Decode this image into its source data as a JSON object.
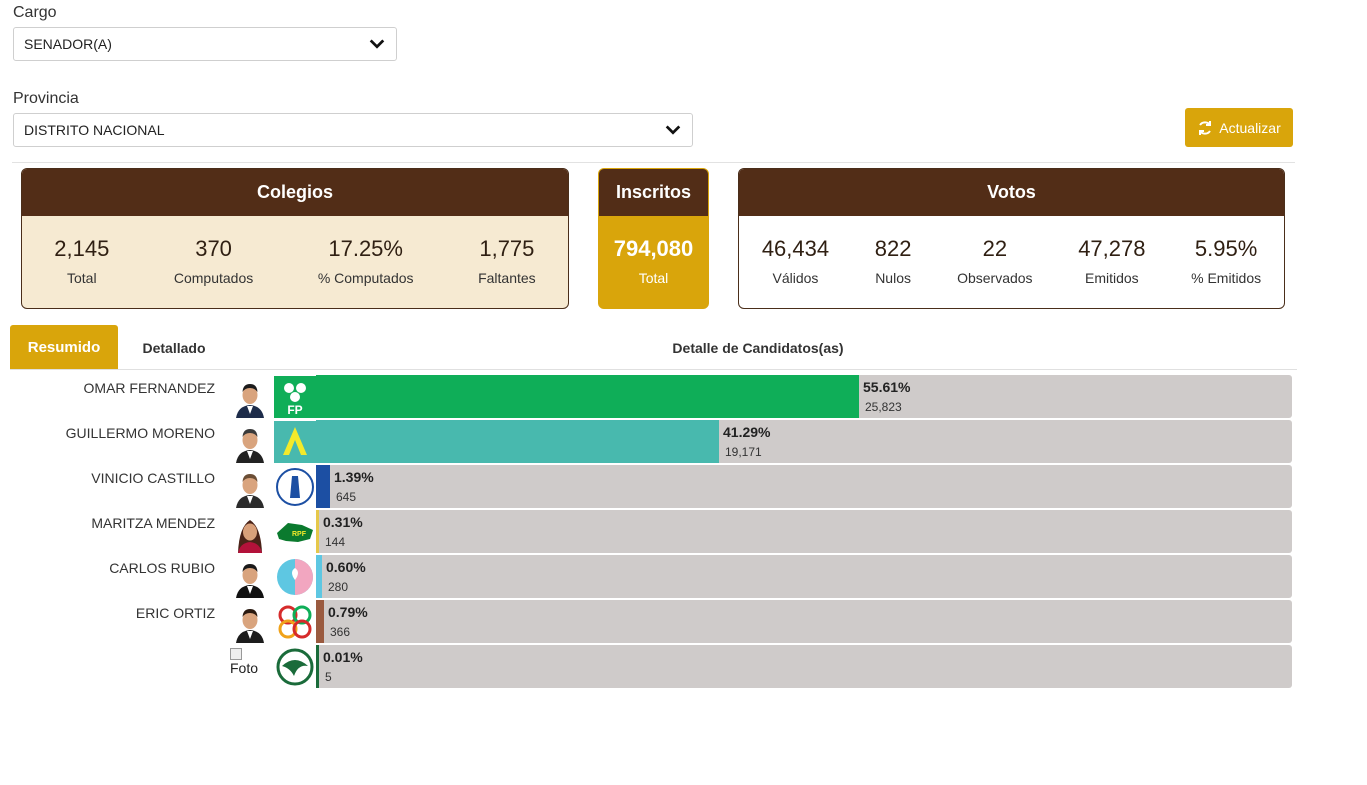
{
  "filters": {
    "cargo_label": "Cargo",
    "cargo_value": "SENADOR(A)",
    "provincia_label": "Provincia",
    "provincia_value": "DISTRITO NACIONAL"
  },
  "refresh_button": {
    "label": "Actualizar",
    "icon": "refresh-icon"
  },
  "colegios": {
    "title": "Colegios",
    "stats": [
      {
        "value": "2,145",
        "label": "Total"
      },
      {
        "value": "370",
        "label": "Computados"
      },
      {
        "value": "17.25%",
        "label": "% Computados"
      },
      {
        "value": "1,775",
        "label": "Faltantes"
      }
    ]
  },
  "inscritos": {
    "title": "Inscritos",
    "value": "794,080",
    "label": "Total"
  },
  "votos": {
    "title": "Votos",
    "stats": [
      {
        "value": "46,434",
        "label": "Válidos"
      },
      {
        "value": "822",
        "label": "Nulos"
      },
      {
        "value": "22",
        "label": "Observados"
      },
      {
        "value": "47,278",
        "label": "Emitidos"
      },
      {
        "value": "5.95%",
        "label": "% Emitidos"
      }
    ]
  },
  "tabs": {
    "active": "Resumido",
    "other": "Detallado"
  },
  "detail_title": "Detalle de Candidatos(as)",
  "candidates": [
    {
      "name": "OMAR FERNANDEZ",
      "percent": "55.61%",
      "votes": "25,823",
      "share": 55.61,
      "color": "#0fae58",
      "logo": "fp-party-logo",
      "logo_text": "FP"
    },
    {
      "name": "GUILLERMO MORENO",
      "percent": "41.29%",
      "votes": "19,171",
      "share": 41.29,
      "color": "#48b9ae",
      "logo": "alianza-pais-logo",
      "logo_text": "A"
    },
    {
      "name": "VINICIO CASTILLO",
      "percent": "1.39%",
      "votes": "645",
      "share": 1.39,
      "color": "#1c4fa3",
      "logo": "fnp-party-logo",
      "logo_text": ""
    },
    {
      "name": "MARITZA MENDEZ",
      "percent": "0.31%",
      "votes": "144",
      "share": 0.31,
      "color": "#e6c84a",
      "logo": "map-party-logo",
      "logo_text": "RPF"
    },
    {
      "name": "CARLOS RUBIO",
      "percent": "0.60%",
      "votes": "280",
      "share": 0.6,
      "color": "#5ec7e2",
      "logo": "ggp-party-logo",
      "logo_text": ""
    },
    {
      "name": "ERIC ORTIZ",
      "percent": "0.79%",
      "votes": "366",
      "share": 0.79,
      "color": "#9a5a3f",
      "logo": "opd-party-logo",
      "logo_text": ""
    },
    {
      "name": "",
      "percent": "0.01%",
      "votes": "5",
      "share": 0.01,
      "color": "#1a6b3a",
      "logo": "globe-party-logo",
      "logo_text": "",
      "photo_alt": "Foto"
    }
  ]
}
